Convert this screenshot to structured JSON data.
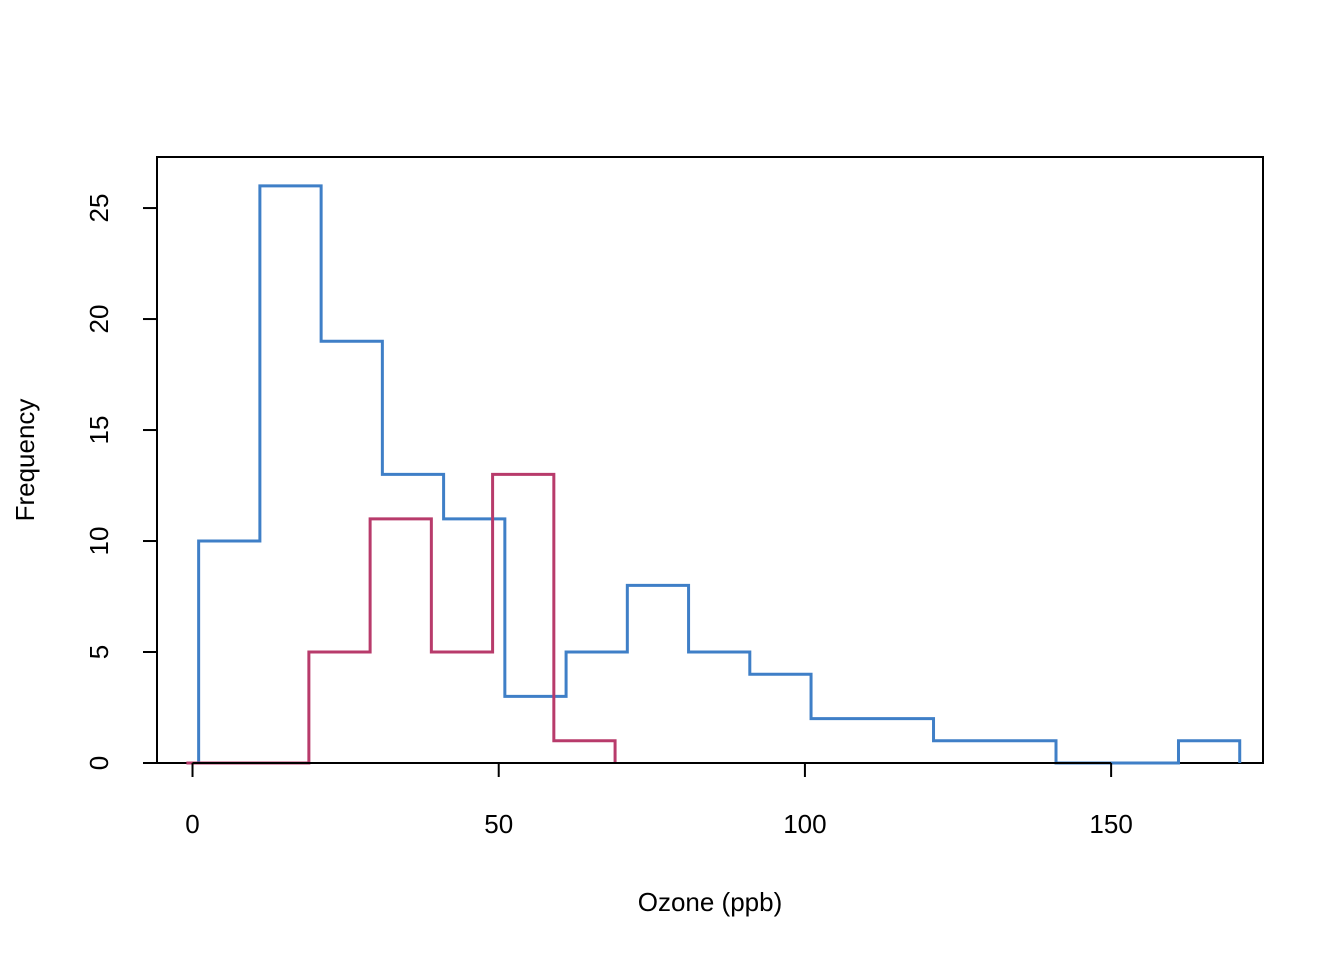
{
  "chart_data": {
    "type": "histogram",
    "title": "",
    "xlabel": "Ozone (ppb)",
    "ylabel": "Frequency",
    "xlim": [
      -5.8,
      174.8
    ],
    "ylim": [
      0,
      27.3
    ],
    "x_ticks": [
      0,
      50,
      100,
      150
    ],
    "y_ticks": [
      0,
      5,
      10,
      15,
      20,
      25
    ],
    "grid": false,
    "legend": "none",
    "series": [
      {
        "color": "#3f7fc7",
        "bin_edges": [
          1,
          11,
          21,
          31,
          41,
          51,
          61,
          71,
          81,
          91,
          101,
          111,
          121,
          131,
          141,
          151,
          161,
          171
        ],
        "counts": [
          10,
          26,
          19,
          13,
          11,
          3,
          5,
          8,
          5,
          4,
          2,
          2,
          1,
          1,
          0,
          0,
          1
        ]
      },
      {
        "color": "#b83b6b",
        "bin_edges": [
          -1,
          9,
          19,
          29,
          39,
          49,
          59,
          69
        ],
        "counts": [
          0,
          0,
          5,
          11,
          5,
          13,
          1
        ]
      }
    ]
  }
}
